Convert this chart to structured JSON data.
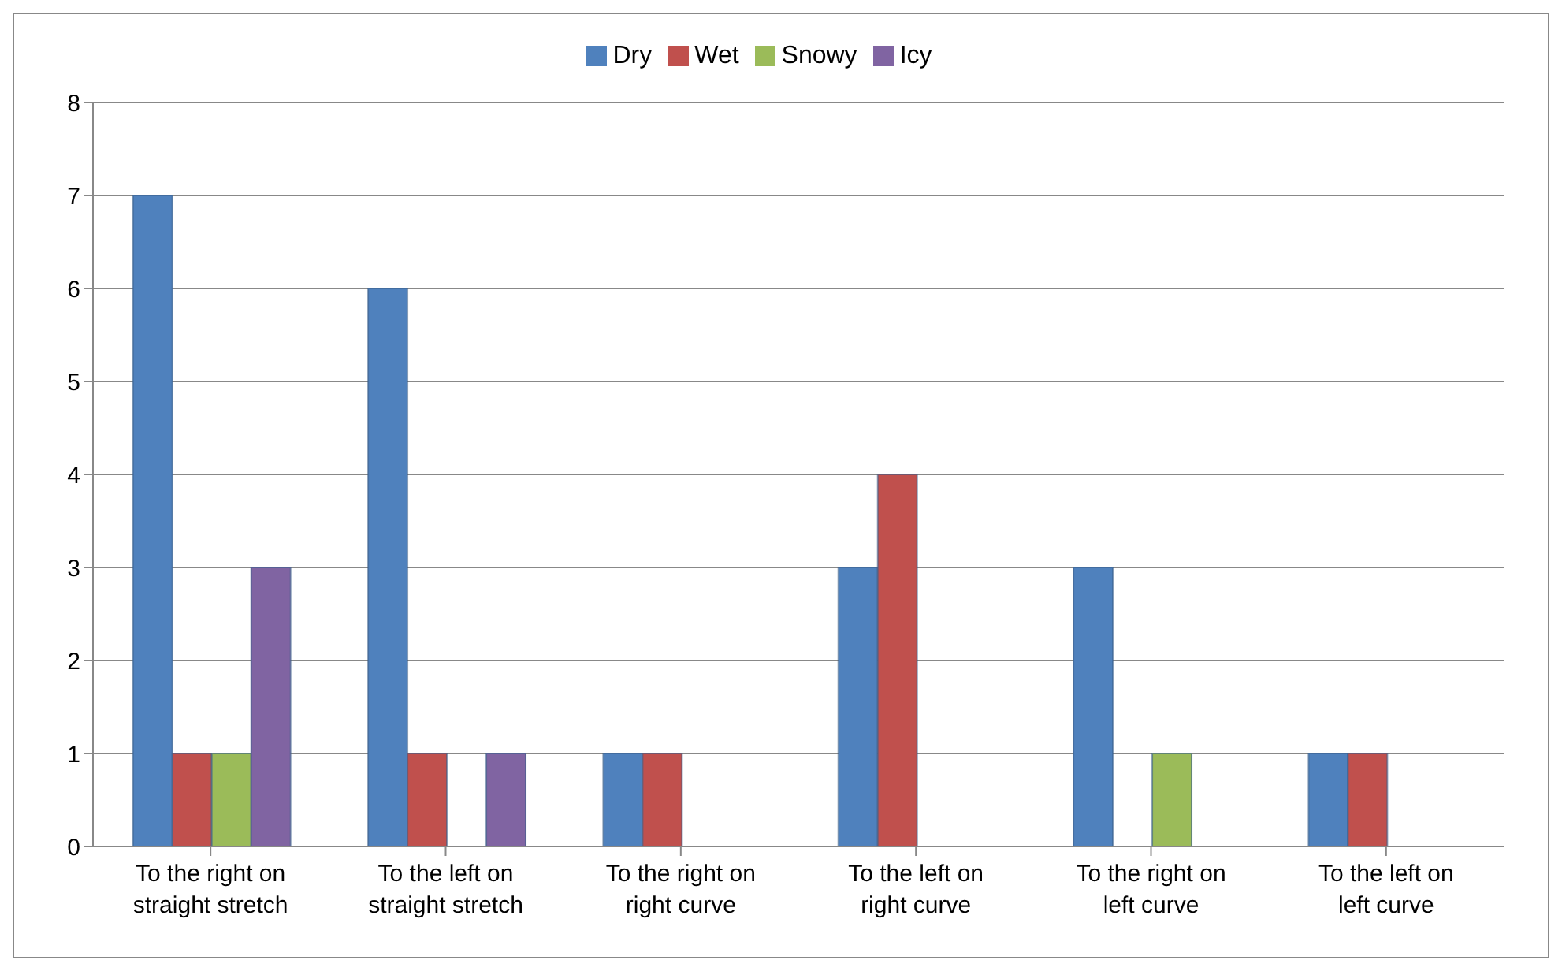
{
  "chart_data": {
    "type": "bar",
    "categories": [
      "To the right on straight stretch",
      "To the left on straight stretch",
      "To the right on right curve",
      "To the left on right curve",
      "To the right on left curve",
      "To the left on left curve"
    ],
    "series": [
      {
        "name": "Dry",
        "color": "#4f81bd",
        "values": [
          7,
          6,
          1,
          3,
          3,
          1
        ]
      },
      {
        "name": "Wet",
        "color": "#c0504d",
        "values": [
          1,
          1,
          1,
          4,
          0,
          1
        ]
      },
      {
        "name": "Snowy",
        "color": "#9bbb59",
        "values": [
          1,
          0,
          0,
          0,
          1,
          0
        ]
      },
      {
        "name": "Icy",
        "color": "#8064a2",
        "values": [
          3,
          1,
          0,
          0,
          0,
          0
        ]
      }
    ],
    "ylim": [
      0,
      8
    ],
    "yticks": [
      0,
      1,
      2,
      3,
      4,
      5,
      6,
      7,
      8
    ],
    "grid": "y",
    "legend": "top"
  }
}
